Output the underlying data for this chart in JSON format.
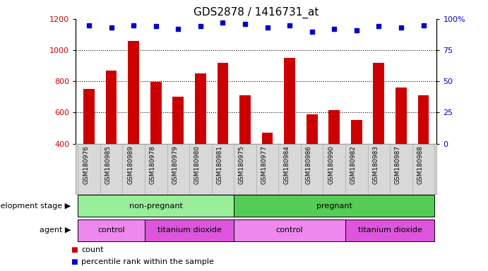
{
  "title": "GDS2878 / 1416731_at",
  "samples": [
    "GSM180976",
    "GSM180985",
    "GSM180989",
    "GSM180978",
    "GSM180979",
    "GSM180980",
    "GSM180981",
    "GSM180975",
    "GSM180977",
    "GSM180984",
    "GSM180986",
    "GSM180990",
    "GSM180982",
    "GSM180983",
    "GSM180987",
    "GSM180988"
  ],
  "counts": [
    750,
    870,
    1060,
    795,
    700,
    850,
    920,
    710,
    470,
    950,
    590,
    615,
    550,
    920,
    760,
    710
  ],
  "percentiles": [
    95,
    93,
    95,
    94,
    92,
    94,
    97,
    96,
    93,
    95,
    90,
    92,
    91,
    94,
    93,
    95
  ],
  "bar_color": "#cc0000",
  "dot_color": "#0000cc",
  "y_min": 400,
  "y_max": 1200,
  "y_ticks_left": [
    400,
    600,
    800,
    1000,
    1200
  ],
  "y_ticks_right": [
    0,
    25,
    50,
    75,
    100
  ],
  "y_tick_right_labels": [
    "0",
    "25",
    "50",
    "75",
    "100%"
  ],
  "grid_values": [
    600,
    800,
    1000
  ],
  "development_stage_groups": [
    {
      "label": "non-pregnant",
      "start": 0,
      "end": 7,
      "color": "#99ee99"
    },
    {
      "label": "pregnant",
      "start": 7,
      "end": 16,
      "color": "#55cc55"
    }
  ],
  "agent_groups": [
    {
      "label": "control",
      "start": 0,
      "end": 3,
      "color": "#ee88ee"
    },
    {
      "label": "titanium dioxide",
      "start": 3,
      "end": 7,
      "color": "#dd55dd"
    },
    {
      "label": "control",
      "start": 7,
      "end": 12,
      "color": "#ee88ee"
    },
    {
      "label": "titanium dioxide",
      "start": 12,
      "end": 16,
      "color": "#dd55dd"
    }
  ],
  "xticklabel_bg": "#d8d8d8",
  "bar_width": 0.5,
  "legend_items": [
    {
      "label": "count",
      "color": "#cc0000"
    },
    {
      "label": "percentile rank within the sample",
      "color": "#0000cc"
    }
  ]
}
